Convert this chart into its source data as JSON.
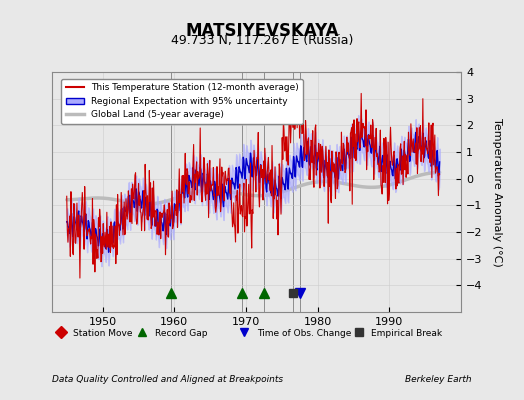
{
  "title": "MATSIYEVSKAYA",
  "subtitle": "49.733 N, 117.267 E (Russia)",
  "ylabel": "Temperature Anomaly (°C)",
  "xlabel_note": "Data Quality Controlled and Aligned at Breakpoints",
  "credit": "Berkeley Earth",
  "ylim": [
    -5,
    4
  ],
  "xlim": [
    1943,
    2000
  ],
  "yticks": [
    -4,
    -3,
    -2,
    -1,
    0,
    1,
    2,
    3,
    4
  ],
  "xticks": [
    1950,
    1960,
    1970,
    1980,
    1990
  ],
  "bg_color": "#e8e8e8",
  "plot_bg_color": "#e8e8e8",
  "station_color": "#cc0000",
  "regional_color": "#0000cc",
  "regional_fill_color": "#aaaaff",
  "global_color": "#bbbbbb",
  "legend_labels": [
    "This Temperature Station (12-month average)",
    "Regional Expectation with 95% uncertainty",
    "Global Land (5-year average)"
  ],
  "markers": {
    "record_gaps": [
      1959.5,
      1969.5,
      1972.5
    ],
    "obs_change": [
      1977.5
    ],
    "empirical_break": [
      1976.5
    ]
  },
  "marker_colors": {
    "station_move": "#cc0000",
    "record_gap": "#006600",
    "obs_change": "#0000cc",
    "empirical_break": "#333333"
  }
}
